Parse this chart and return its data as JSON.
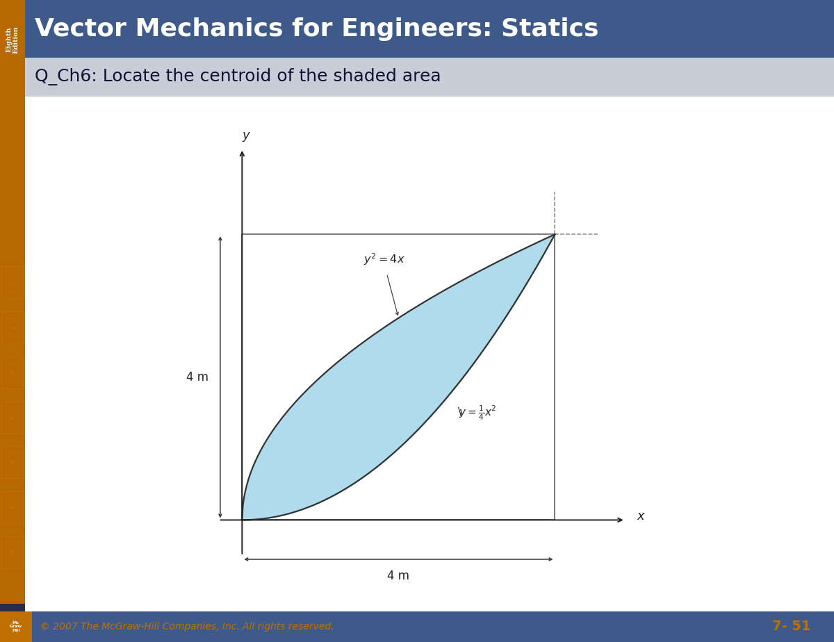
{
  "title": "Vector Mechanics for Engineers: Statics",
  "subtitle": "Q_Ch6: Locate the centroid of the shaded area",
  "title_bg": "#3d5a8a",
  "subtitle_bg": "#c8cdd8",
  "sidebar_color": "#b86800",
  "footer_bg": "#3d5a8a",
  "footer_text": "© 2007 The McGraw-Hill Companies, Inc. All rights reserved.",
  "footer_page": "7- 51",
  "footer_logo_color": "#c07000",
  "dim_label_left": "4 m",
  "dim_label_bottom": "4 m",
  "shaded_color": "#a8d8ea",
  "shaded_alpha": 0.9,
  "bg_color": "#ffffff",
  "main_bg": "#ffffff",
  "curve1_label": "$y^2 = 4x$",
  "curve2_label": "$y = \\frac{1}{4}x^2$",
  "icon_color": "#c07000",
  "xlim": [
    -0.5,
    5.5
  ],
  "ylim": [
    -0.7,
    5.5
  ]
}
